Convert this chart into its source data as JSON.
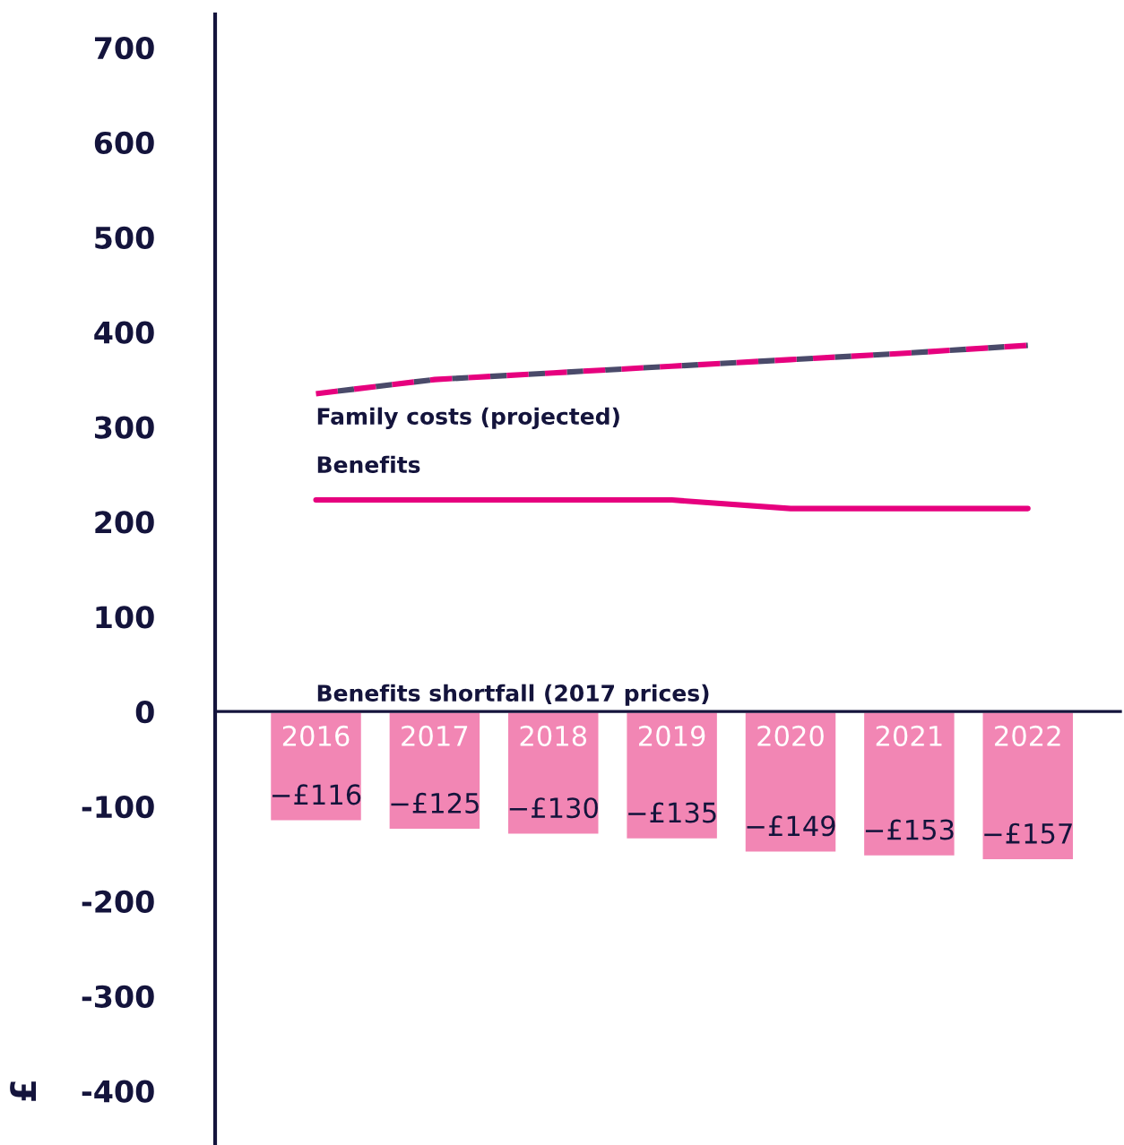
{
  "chart_data": {
    "type": "bar",
    "ylabel": "£",
    "categories": [
      "2016",
      "2017",
      "2018",
      "2019",
      "2020",
      "2021",
      "2022"
    ],
    "series": [
      {
        "name": "Benefits shortfall (2017 prices)",
        "color": "#f286b4",
        "values": [
          -116,
          -125,
          -130,
          -135,
          -149,
          -153,
          -157
        ],
        "value_labels": [
          "−£116",
          "−£125",
          "−£130",
          "−£135",
          "−£149",
          "−£153",
          "−£157"
        ]
      },
      {
        "name": "Family costs (projected)",
        "type": "line",
        "color": "#e6007e",
        "line_style": "dashed",
        "values": [
          335,
          350,
          357,
          364,
          371,
          378,
          386
        ]
      },
      {
        "name": "Benefits",
        "type": "line",
        "color": "#e6007e",
        "line_style": "solid",
        "values": [
          223,
          223,
          223,
          223,
          214,
          214,
          214
        ]
      }
    ],
    "ylim": [
      -457,
      735
    ],
    "yticks": [
      -400,
      -300,
      -200,
      -100,
      0,
      100,
      200,
      300,
      400,
      500,
      600,
      700
    ],
    "grid": false,
    "legend": false
  }
}
